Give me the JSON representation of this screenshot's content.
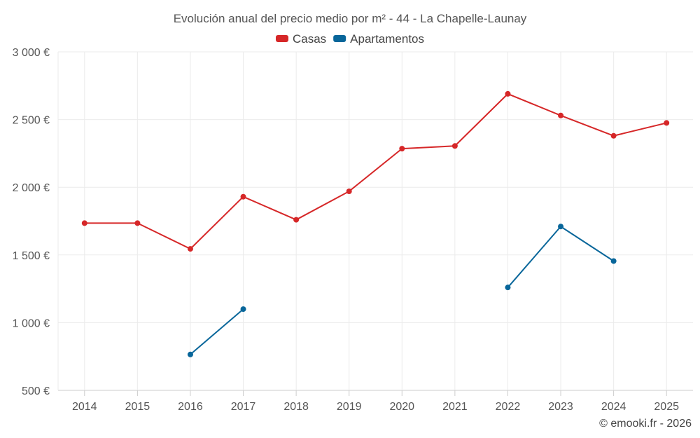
{
  "chart_data": {
    "type": "line",
    "title": "Evolución anual del precio medio por m² - 44 - La Chapelle-Launay",
    "categories": [
      "2014",
      "2015",
      "2016",
      "2017",
      "2018",
      "2019",
      "2020",
      "2021",
      "2022",
      "2023",
      "2024",
      "2025"
    ],
    "ylim": [
      500,
      3000
    ],
    "yticks": [
      500,
      1000,
      1500,
      2000,
      2500,
      3000
    ],
    "ytick_labels": [
      "500 €",
      "1 000 €",
      "1 500 €",
      "2 000 €",
      "2 500 €",
      "3 000 €"
    ],
    "xlabel": "",
    "ylabel": "",
    "grid": true,
    "legend_position": "top-center",
    "series": [
      {
        "name": "Casas",
        "color": "#d62728",
        "values": [
          1735,
          1735,
          1545,
          1930,
          1760,
          1970,
          2285,
          2305,
          2690,
          2530,
          2380,
          2475
        ]
      },
      {
        "name": "Apartamentos",
        "color": "#08669a",
        "values": [
          null,
          null,
          765,
          1100,
          null,
          null,
          null,
          null,
          1260,
          1710,
          1455,
          null
        ]
      }
    ]
  },
  "credit": "© emooki.fr - 2026"
}
